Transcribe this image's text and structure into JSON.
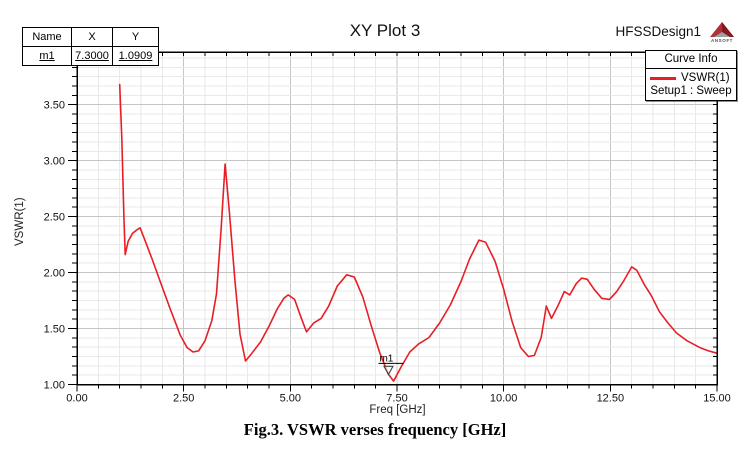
{
  "window": {
    "title": "XY Plot 3",
    "design_name": "HFSSDesign1",
    "logo_text": "ANSOFT"
  },
  "marker_table": {
    "headers": [
      "Name",
      "X",
      "Y"
    ],
    "rows": [
      {
        "name": "m1",
        "x": "7.3000",
        "y": "1.0909"
      }
    ]
  },
  "legend": {
    "title": "Curve Info",
    "series_label": "VSWR(1)",
    "setup_label": "Setup1 : Sweep",
    "series_color": "#e81e25"
  },
  "caption": "Fig.3. VSWR verses frequency [GHz]",
  "chart_data": {
    "type": "line",
    "title": "XY Plot 3",
    "xlabel": "Freq [GHz]",
    "ylabel": "VSWR(1)",
    "xlim": [
      0,
      15
    ],
    "ylim": [
      1.0,
      3.97
    ],
    "x_ticks": [
      0,
      2.5,
      5,
      7.5,
      10,
      12.5,
      15
    ],
    "x_tick_labels": [
      "0.00",
      "2.50",
      "5.00",
      "7.50",
      "10.00",
      "12.50",
      "15.00"
    ],
    "y_ticks": [
      1.0,
      1.5,
      2.0,
      2.5,
      3.0,
      3.5
    ],
    "y_tick_labels": [
      "1.00",
      "1.50",
      "2.00",
      "2.50",
      "3.00",
      "3.50"
    ],
    "x_minor_step": 0.5,
    "y_minor_step": 0.08333,
    "grid": true,
    "legend_position": "top-right",
    "series": [
      {
        "name": "VSWR(1)",
        "color": "#e81e25",
        "points": [
          [
            1.0,
            3.68
          ],
          [
            1.05,
            3.2
          ],
          [
            1.1,
            2.5
          ],
          [
            1.13,
            2.16
          ],
          [
            1.2,
            2.28
          ],
          [
            1.3,
            2.35
          ],
          [
            1.4,
            2.38
          ],
          [
            1.48,
            2.4
          ],
          [
            1.6,
            2.28
          ],
          [
            1.75,
            2.13
          ],
          [
            1.95,
            1.92
          ],
          [
            2.18,
            1.68
          ],
          [
            2.42,
            1.44
          ],
          [
            2.58,
            1.33
          ],
          [
            2.72,
            1.29
          ],
          [
            2.85,
            1.3
          ],
          [
            3.0,
            1.39
          ],
          [
            3.16,
            1.57
          ],
          [
            3.27,
            1.81
          ],
          [
            3.38,
            2.4
          ],
          [
            3.47,
            2.97
          ],
          [
            3.57,
            2.55
          ],
          [
            3.7,
            1.93
          ],
          [
            3.82,
            1.45
          ],
          [
            3.95,
            1.21
          ],
          [
            4.1,
            1.28
          ],
          [
            4.3,
            1.38
          ],
          [
            4.5,
            1.52
          ],
          [
            4.7,
            1.68
          ],
          [
            4.85,
            1.77
          ],
          [
            4.95,
            1.8
          ],
          [
            5.1,
            1.76
          ],
          [
            5.25,
            1.6
          ],
          [
            5.38,
            1.47
          ],
          [
            5.55,
            1.55
          ],
          [
            5.72,
            1.59
          ],
          [
            5.9,
            1.7
          ],
          [
            6.1,
            1.88
          ],
          [
            6.32,
            1.98
          ],
          [
            6.5,
            1.96
          ],
          [
            6.7,
            1.78
          ],
          [
            6.9,
            1.52
          ],
          [
            7.1,
            1.28
          ],
          [
            7.3,
            1.09
          ],
          [
            7.42,
            1.03
          ],
          [
            7.6,
            1.16
          ],
          [
            7.8,
            1.29
          ],
          [
            8.0,
            1.36
          ],
          [
            8.25,
            1.42
          ],
          [
            8.5,
            1.55
          ],
          [
            8.75,
            1.71
          ],
          [
            9.0,
            1.92
          ],
          [
            9.2,
            2.12
          ],
          [
            9.42,
            2.29
          ],
          [
            9.58,
            2.27
          ],
          [
            9.8,
            2.1
          ],
          [
            10.0,
            1.85
          ],
          [
            10.2,
            1.56
          ],
          [
            10.4,
            1.33
          ],
          [
            10.58,
            1.25
          ],
          [
            10.72,
            1.26
          ],
          [
            10.88,
            1.42
          ],
          [
            11.0,
            1.7
          ],
          [
            11.12,
            1.59
          ],
          [
            11.28,
            1.71
          ],
          [
            11.42,
            1.83
          ],
          [
            11.55,
            1.8
          ],
          [
            11.7,
            1.9
          ],
          [
            11.83,
            1.95
          ],
          [
            11.96,
            1.94
          ],
          [
            12.12,
            1.85
          ],
          [
            12.3,
            1.77
          ],
          [
            12.48,
            1.76
          ],
          [
            12.65,
            1.83
          ],
          [
            12.82,
            1.93
          ],
          [
            13.0,
            2.05
          ],
          [
            13.12,
            2.02
          ],
          [
            13.3,
            1.89
          ],
          [
            13.45,
            1.8
          ],
          [
            13.65,
            1.65
          ],
          [
            13.85,
            1.55
          ],
          [
            14.05,
            1.46
          ],
          [
            14.3,
            1.39
          ],
          [
            14.6,
            1.33
          ],
          [
            14.8,
            1.3
          ],
          [
            15.0,
            1.28
          ]
        ]
      }
    ],
    "markers": [
      {
        "name": "m1",
        "x": 7.3,
        "y": 1.0909
      }
    ]
  }
}
